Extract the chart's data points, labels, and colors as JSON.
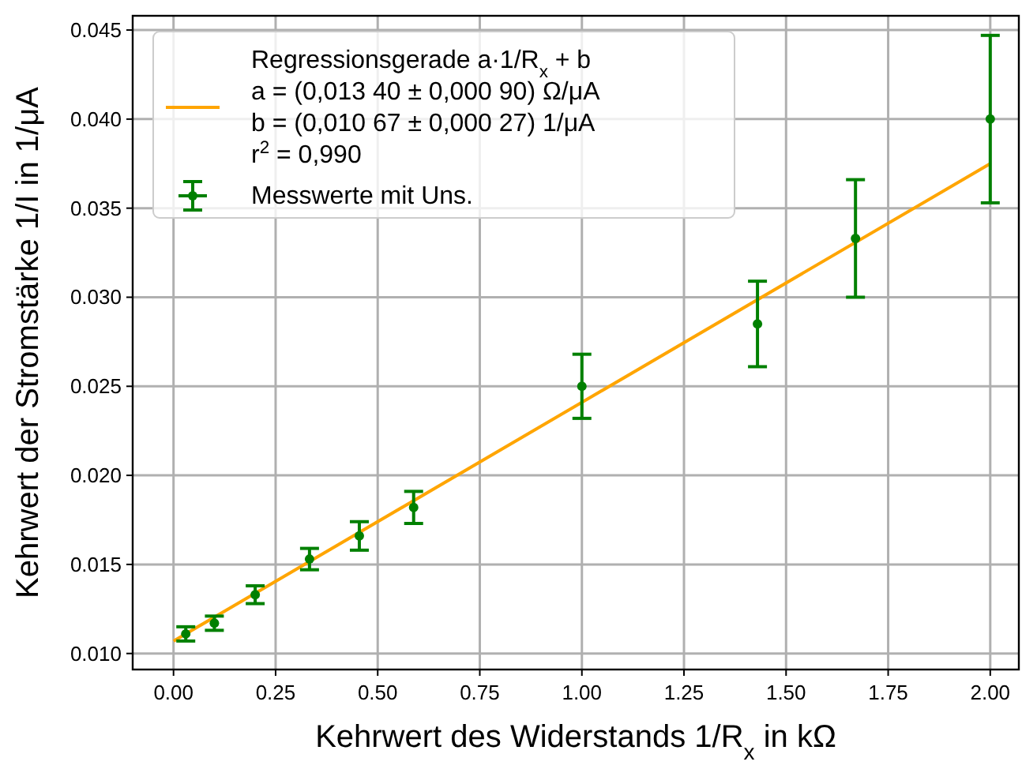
{
  "chart_data": {
    "type": "scatter",
    "xlabel": "Kehrwert des Widerstands 1/R$_{x}$ in kΩ",
    "ylabel": "Kehrwert der Stromstärke 1/I in 1/μA",
    "xlim": [
      -0.1,
      2.07
    ],
    "ylim": [
      0.0091,
      0.0458
    ],
    "xticks": [
      {
        "value": 0,
        "label": "0.00"
      },
      {
        "value": 0.25,
        "label": "0.25"
      },
      {
        "value": 0.5,
        "label": "0.50"
      },
      {
        "value": 0.75,
        "label": "0.75"
      },
      {
        "value": 1,
        "label": "1.00"
      },
      {
        "value": 1.25,
        "label": "1.25"
      },
      {
        "value": 1.5,
        "label": "1.50"
      },
      {
        "value": 1.75,
        "label": "1.75"
      },
      {
        "value": 2,
        "label": "2.00"
      }
    ],
    "yticks": [
      {
        "value": 0.01,
        "label": "0.010"
      },
      {
        "value": 0.015,
        "label": "0.015"
      },
      {
        "value": 0.02,
        "label": "0.020"
      },
      {
        "value": 0.025,
        "label": "0.025"
      },
      {
        "value": 0.03,
        "label": "0.030"
      },
      {
        "value": 0.035,
        "label": "0.035"
      },
      {
        "value": 0.04,
        "label": "0.040"
      },
      {
        "value": 0.045,
        "label": "0.045"
      }
    ],
    "grid": true,
    "legend": "top left",
    "series": [
      {
        "type": "line",
        "name": "Regressionsgerade a·1/R$_{x}$ + b\na = (0,013 40 ± 0,000 90) Ω/μA\nb = (0,010 67 ± 0,000 27) 1/μA\nr$^{2}$ = 0,990",
        "color": "#ffa500",
        "marker": "none",
        "x": [
          0,
          2
        ],
        "values": [
          0.0107,
          0.0375
        ]
      },
      {
        "name": "Messwerte mit Uns.",
        "color": "#008000",
        "marker": "circle",
        "x": [
          0.03,
          0.1,
          0.2,
          0.333,
          0.455,
          0.588,
          1.0,
          1.43,
          1.67,
          2.0
        ],
        "values": [
          0.0111,
          0.0117,
          0.0133,
          0.0153,
          0.0166,
          0.0182,
          0.025,
          0.0285,
          0.0333,
          0.04
        ],
        "errors": [
          0.0004,
          0.0004,
          0.0005,
          0.0006,
          0.0008,
          0.0009,
          0.0018,
          0.0024,
          0.0033,
          0.0047
        ]
      }
    ]
  }
}
